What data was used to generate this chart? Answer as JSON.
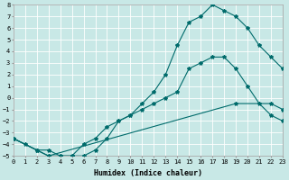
{
  "xlabel": "Humidex (Indice chaleur)",
  "xlim": [
    0,
    23
  ],
  "ylim": [
    -5,
    8
  ],
  "xticks": [
    0,
    1,
    2,
    3,
    4,
    5,
    6,
    7,
    8,
    9,
    10,
    11,
    12,
    13,
    14,
    15,
    16,
    17,
    18,
    19,
    20,
    21,
    22,
    23
  ],
  "yticks": [
    -5,
    -4,
    -3,
    -2,
    -1,
    0,
    1,
    2,
    3,
    4,
    5,
    6,
    7,
    8
  ],
  "bg_color": "#c8e8e6",
  "line_color": "#006b6b",
  "grid_color": "#ffffff",
  "lines": [
    {
      "x": [
        0,
        1,
        2,
        3,
        4,
        5,
        6,
        7,
        8,
        9,
        10,
        11,
        12,
        13,
        14,
        15,
        16,
        17,
        18,
        19,
        20,
        21,
        22,
        23
      ],
      "y": [
        -3.5,
        -4.0,
        -4.5,
        -4.5,
        -5.0,
        -5.0,
        -5.0,
        -4.5,
        -3.5,
        -2.0,
        -1.5,
        -0.5,
        0.5,
        2.0,
        4.5,
        6.5,
        7.0,
        8.0,
        7.5,
        7.0,
        6.0,
        4.5,
        3.5,
        2.5
      ]
    },
    {
      "x": [
        0,
        2,
        3,
        4,
        5,
        6,
        7,
        8,
        9,
        10,
        11,
        12,
        13,
        14,
        15,
        16,
        17,
        18,
        19,
        20,
        21,
        22,
        23
      ],
      "y": [
        -3.5,
        -4.5,
        -5.0,
        -5.0,
        -5.0,
        -4.0,
        -3.5,
        -2.5,
        -2.0,
        -1.5,
        -1.0,
        -0.5,
        0.0,
        0.5,
        2.5,
        3.0,
        3.5,
        3.5,
        2.5,
        1.0,
        -0.5,
        -1.5,
        -2.0
      ]
    },
    {
      "x": [
        0,
        2,
        3,
        19,
        22,
        23
      ],
      "y": [
        -3.5,
        -4.5,
        -5.0,
        -0.5,
        -0.5,
        -1.0
      ]
    }
  ]
}
